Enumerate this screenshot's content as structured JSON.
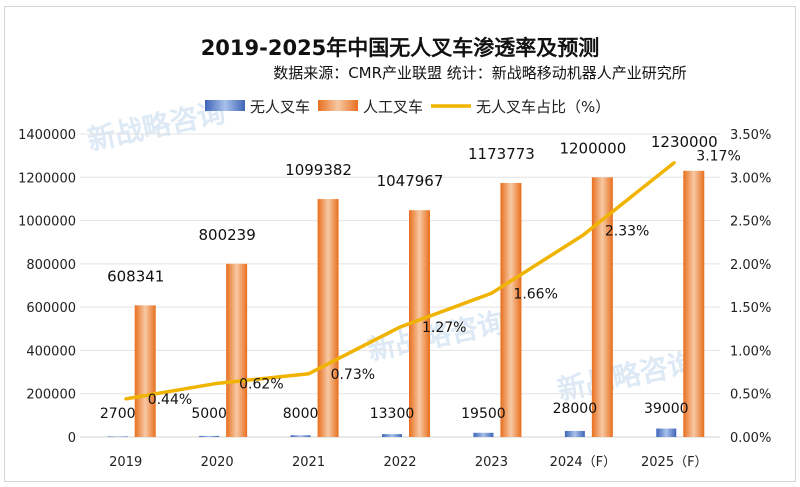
{
  "chart_data": {
    "type": "bar",
    "title": "2019-2025年中国无人叉车渗透率及预测",
    "subtitle": "数据来源：CMR产业联盟 统计：新战略移动机器人产业研究所",
    "categories": [
      "2019",
      "2020",
      "2021",
      "2022",
      "2023",
      "2024（F）",
      "2025（F）"
    ],
    "series": [
      {
        "name": "无人叉车",
        "type": "bar",
        "axis": "left",
        "color": "#4a72c4",
        "values": [
          2700,
          5000,
          8000,
          13300,
          19500,
          28000,
          39000
        ]
      },
      {
        "name": "人工叉车",
        "type": "bar",
        "axis": "left",
        "color": "#ed7d31",
        "values": [
          608341,
          800239,
          1099382,
          1047967,
          1173773,
          1200000,
          1230000
        ]
      },
      {
        "name": "无人叉车占比（%）",
        "type": "line",
        "axis": "right",
        "color": "#f0b400",
        "values": [
          0.44,
          0.62,
          0.73,
          1.27,
          1.66,
          2.33,
          3.17
        ],
        "labels": [
          "0.44%",
          "0.62%",
          "0.73%",
          "1.27%",
          "1.66%",
          "2.33%",
          "3.17%"
        ]
      }
    ],
    "ylim": [
      0,
      1400000
    ],
    "yticks": [
      "0",
      "200000",
      "400000",
      "600000",
      "800000",
      "1000000",
      "1200000",
      "1400000"
    ],
    "y2lim": [
      0,
      3.5
    ],
    "y2ticks": [
      "0.00%",
      "0.50%",
      "1.00%",
      "1.50%",
      "2.00%",
      "2.50%",
      "3.00%",
      "3.50%"
    ],
    "grid": true,
    "legend": "top"
  },
  "watermark": "新战略咨询"
}
